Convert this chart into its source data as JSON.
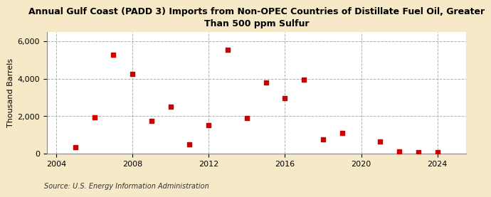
{
  "title": "Annual Gulf Coast (PADD 3) Imports from Non-OPEC Countries of Distillate Fuel Oil, Greater\nThan 500 ppm Sulfur",
  "ylabel": "Thousand Barrels",
  "source": "Source: U.S. Energy Information Administration",
  "background_color": "#f5e9c8",
  "plot_background_color": "#ffffff",
  "marker_color": "#cc0000",
  "years": [
    2005,
    2006,
    2007,
    2008,
    2009,
    2010,
    2011,
    2012,
    2013,
    2014,
    2015,
    2016,
    2017,
    2018,
    2019,
    2021,
    2022,
    2023,
    2024
  ],
  "values": [
    320,
    1950,
    5300,
    4250,
    1750,
    2500,
    500,
    1500,
    5550,
    1900,
    3800,
    2950,
    3950,
    760,
    1100,
    650,
    100,
    50,
    75
  ],
  "xlim": [
    2003.5,
    2025.5
  ],
  "ylim": [
    0,
    6500
  ],
  "yticks": [
    0,
    2000,
    4000,
    6000
  ],
  "xticks": [
    2004,
    2008,
    2012,
    2016,
    2020,
    2024
  ],
  "grid_color": "#b0b0b0",
  "title_fontsize": 9.0,
  "axis_fontsize": 8.0,
  "source_fontsize": 7.0
}
